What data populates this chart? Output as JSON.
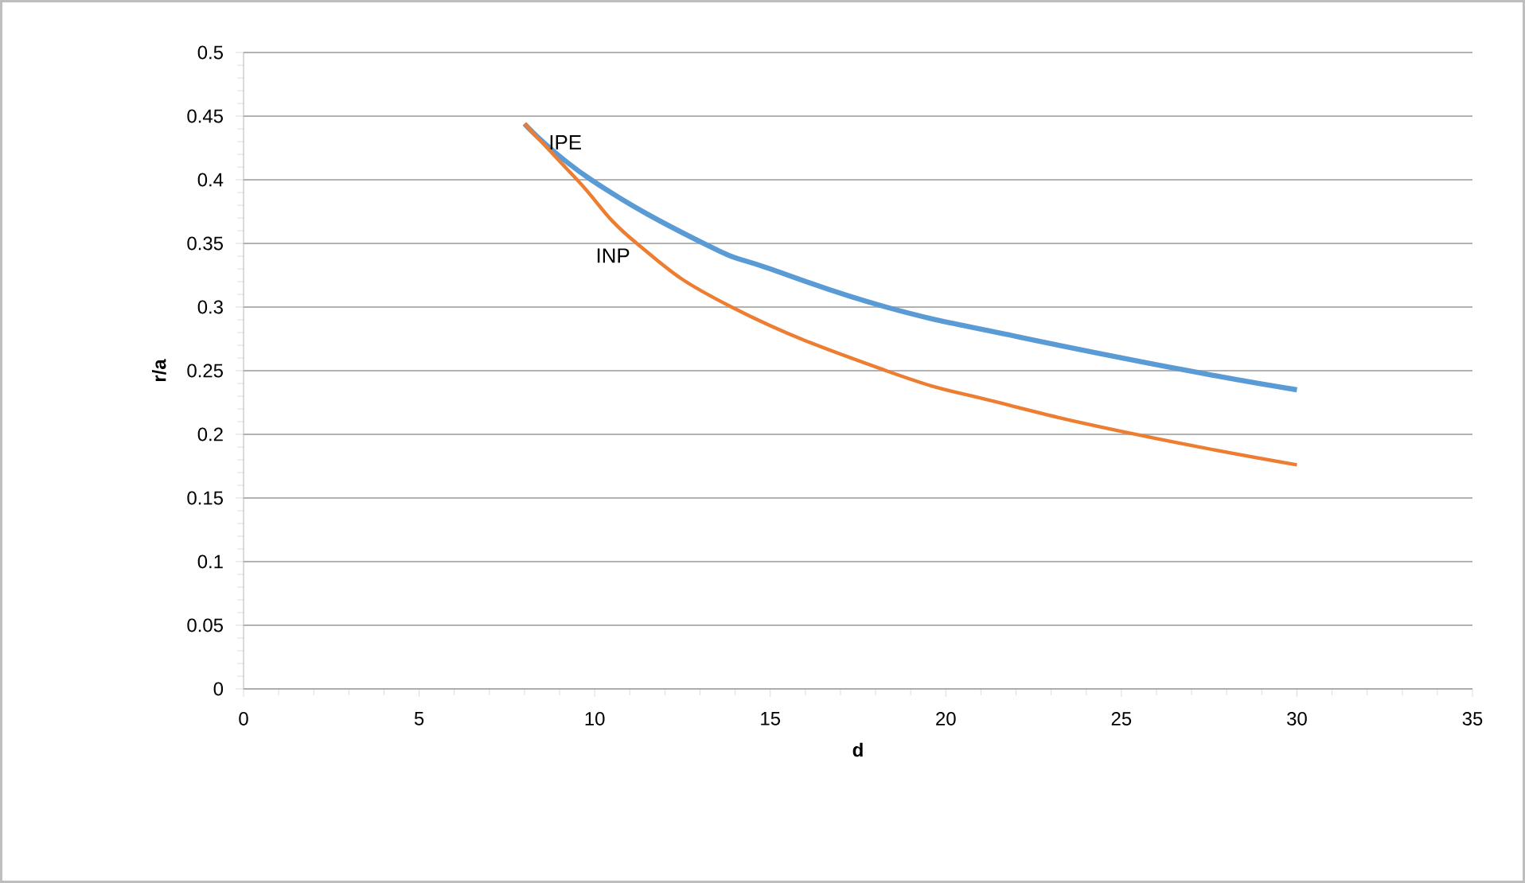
{
  "chart_data": {
    "type": "line",
    "xlabel": "d",
    "ylabel": "r/a",
    "xlim": [
      0,
      35
    ],
    "xticks": [
      0,
      5,
      10,
      15,
      20,
      25,
      30,
      35
    ],
    "ylim": [
      0,
      0.5
    ],
    "yticks": [
      0,
      0.05,
      0.1,
      0.15,
      0.2,
      0.25,
      0.3,
      0.35,
      0.4,
      0.45,
      0.5
    ],
    "grid": "y",
    "legend": false,
    "marker": "none",
    "line_style": "solid",
    "series": [
      {
        "name": "IPE",
        "color": "#5b9bd5",
        "x": [
          8,
          9.9,
          13.1,
          15,
          18.3,
          22,
          26.9,
          30
        ],
        "values": [
          0.444,
          0.4,
          0.35,
          0.33,
          0.3,
          0.277,
          0.25,
          0.235
        ]
      },
      {
        "name": "INP",
        "color": "#ed7d31",
        "x": [
          8,
          9.5,
          11.2,
          13.9,
          18.3,
          21.5,
          25.4,
          30
        ],
        "values": [
          0.444,
          0.4,
          0.35,
          0.3,
          0.25,
          0.225,
          0.2,
          0.176
        ]
      }
    ]
  }
}
